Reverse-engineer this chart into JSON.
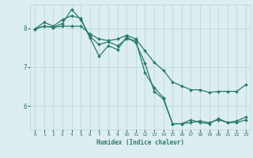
{
  "xlabel": "Humidex (Indice chaleur)",
  "bg_color": "#dceef0",
  "line_color": "#2a7a6a",
  "grid_color": "#b8d4d4",
  "xlim": [
    -0.5,
    23.5
  ],
  "ylim": [
    5.4,
    8.6
  ],
  "yticks": [
    6,
    7,
    8
  ],
  "xticks": [
    0,
    1,
    2,
    3,
    4,
    5,
    6,
    7,
    8,
    9,
    10,
    11,
    12,
    13,
    14,
    15,
    16,
    17,
    18,
    19,
    20,
    21,
    22,
    23
  ],
  "line1_x": [
    0,
    1,
    2,
    3,
    4,
    5,
    6,
    7,
    8,
    9,
    10,
    11,
    12,
    13,
    14,
    15,
    16,
    17,
    18,
    19,
    20,
    21,
    22,
    23
  ],
  "line1_y": [
    7.98,
    8.15,
    8.05,
    8.22,
    8.32,
    8.25,
    7.75,
    7.28,
    7.55,
    7.45,
    7.78,
    7.62,
    7.1,
    6.38,
    6.18,
    5.55,
    5.55,
    5.65,
    5.58,
    5.55,
    5.68,
    5.58,
    5.58,
    5.65
  ],
  "line2_x": [
    0,
    1,
    2,
    3,
    4,
    5,
    6,
    7,
    8,
    9,
    10,
    11,
    12,
    13,
    14,
    15,
    16,
    17,
    18,
    19,
    20,
    21,
    22,
    23
  ],
  "line2_y": [
    7.98,
    8.05,
    8.02,
    8.05,
    8.05,
    8.05,
    7.85,
    7.72,
    7.68,
    7.72,
    7.82,
    7.72,
    7.42,
    7.12,
    6.92,
    6.62,
    6.52,
    6.42,
    6.42,
    6.35,
    6.38,
    6.38,
    6.38,
    6.55
  ],
  "line3_x": [
    0,
    1,
    2,
    3,
    4,
    5,
    6,
    7,
    8,
    9,
    10,
    11,
    12,
    13,
    14,
    15,
    16,
    17,
    18,
    19,
    20,
    21,
    22,
    23
  ],
  "line3_y": [
    7.98,
    8.05,
    8.02,
    8.12,
    8.48,
    8.22,
    7.78,
    7.58,
    7.65,
    7.55,
    7.72,
    7.68,
    6.85,
    6.48,
    6.22,
    5.55,
    5.55,
    5.58,
    5.62,
    5.58,
    5.65,
    5.58,
    5.62,
    5.72
  ]
}
